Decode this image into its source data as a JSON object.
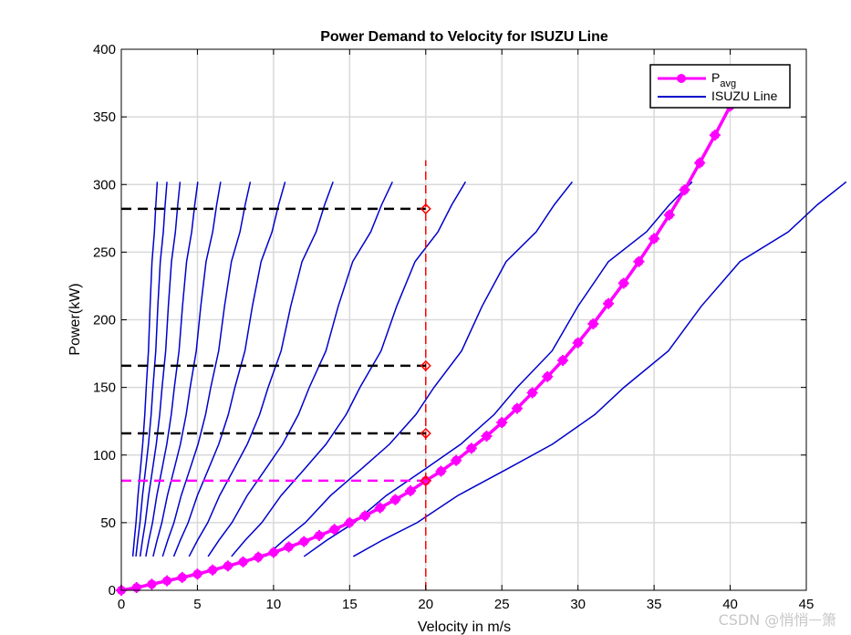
{
  "chart_data": {
    "type": "line",
    "title": "Power Demand to Velocity for ISUZU Line",
    "xlabel": "Velocity in m/s",
    "ylabel": "Power(kW)",
    "xlim": [
      0,
      45
    ],
    "ylim": [
      0,
      400
    ],
    "xticks": [
      0,
      5,
      10,
      15,
      20,
      25,
      30,
      35,
      40,
      45
    ],
    "yticks": [
      0,
      50,
      100,
      150,
      200,
      250,
      300,
      350,
      400
    ],
    "grid": true,
    "legend": {
      "position": "top-right",
      "entries": [
        {
          "label": "P",
          "subscript": "avg",
          "color": "#ff00ff"
        },
        {
          "label": "ISUZU Line",
          "color": "#0000cc"
        }
      ]
    },
    "series": [
      {
        "name": "Pavg",
        "color": "#ff00ff",
        "x": [
          0,
          1,
          2,
          3,
          4,
          5,
          6,
          7,
          8,
          9,
          10,
          11,
          12,
          13,
          14,
          15,
          16,
          17,
          18,
          19,
          20,
          21,
          22,
          23,
          24,
          25,
          26,
          27,
          28,
          29,
          30,
          31,
          32,
          33,
          34,
          35,
          36,
          37,
          38,
          39,
          40
        ],
        "y": [
          0,
          2,
          4.5,
          7,
          9.5,
          12,
          15,
          18,
          21,
          24.5,
          28,
          32,
          36,
          40.5,
          45,
          50,
          55,
          61,
          67,
          73.5,
          81,
          88,
          96,
          105,
          114,
          124,
          134.5,
          146,
          158,
          170,
          183,
          197,
          212,
          227,
          243,
          260,
          277.5,
          296,
          316,
          336.5,
          358
        ]
      },
      {
        "name": "ISUZU Line",
        "color": "#0000cc",
        "x_scales": [
          0.063,
          0.08,
          0.103,
          0.134,
          0.174,
          0.226,
          0.287,
          0.371,
          0.475,
          0.603,
          0.79,
          1.0,
          1.27
        ],
        "base_curve": {
          "x": [
            12.0,
            13.5,
            15.3,
            17.4,
            20.0,
            22.3,
            24.5,
            26.0,
            28.3,
            30.0,
            32.0,
            34.5,
            36.0,
            37.5
          ],
          "y": [
            25,
            37,
            50,
            70,
            90,
            108,
            130,
            150,
            177,
            210,
            243,
            265,
            285,
            302
          ]
        }
      }
    ],
    "annotations": [
      {
        "type": "vline",
        "x": 20,
        "color": "#ff0000",
        "style": "dashed"
      },
      {
        "type": "hline",
        "y": 282,
        "x_end": 20,
        "color": "#000000",
        "style": "dashed"
      },
      {
        "type": "hline",
        "y": 166,
        "x_end": 20,
        "color": "#000000",
        "style": "dashed"
      },
      {
        "type": "hline",
        "y": 116,
        "x_end": 20,
        "color": "#000000",
        "style": "dashed"
      },
      {
        "type": "hline",
        "y": 81,
        "x_end": 20,
        "color": "#ff00ff",
        "style": "dashed"
      },
      {
        "type": "marker",
        "shape": "diamond",
        "x": 20,
        "y": 282,
        "color": "#ff0000"
      },
      {
        "type": "marker",
        "shape": "diamond",
        "x": 20,
        "y": 166,
        "color": "#ff0000"
      },
      {
        "type": "marker",
        "shape": "diamond",
        "x": 20,
        "y": 116,
        "color": "#ff0000"
      },
      {
        "type": "marker",
        "shape": "diamond",
        "x": 20,
        "y": 81,
        "color": "#ff0000"
      }
    ]
  },
  "watermark": "CSDN @悄悄ᅳ箫"
}
